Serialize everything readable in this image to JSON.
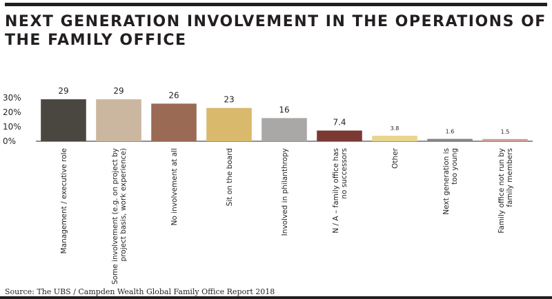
{
  "title": "NEXT GENERATION INVOLVEMENT IN THE OPERATIONS OF THE FAMILY OFFICE",
  "source": "Source: The UBS / Campden Wealth Global Family Office Report 2018",
  "chart_data": {
    "type": "bar",
    "title": "NEXT GENERATION INVOLVEMENT IN THE OPERATIONS OF THE FAMILY OFFICE",
    "xlabel": "",
    "ylabel": "",
    "ylim": [
      0,
      35
    ],
    "yticks": [
      0,
      10,
      20,
      30
    ],
    "ytick_labels": [
      "0%",
      "10%",
      "20%",
      "30%"
    ],
    "grid": false,
    "categories": [
      [
        "Management / executive role"
      ],
      [
        "Some involvement (e.g. on project by",
        "project basis, work experience)"
      ],
      [
        "No involvement at all"
      ],
      [
        "Sit on the board"
      ],
      [
        "Involved in philanthropy"
      ],
      [
        "N / A – family office has",
        "no successors"
      ],
      [
        "Other"
      ],
      [
        "Next generation is",
        "too young"
      ],
      [
        "Family office not run by",
        "family members"
      ]
    ],
    "values": [
      29,
      29,
      26,
      23,
      16,
      7.4,
      3.8,
      1.6,
      1.5
    ],
    "value_labels": [
      "29",
      "29",
      "26",
      "23",
      "16",
      "7.4",
      "3.8",
      "1.6",
      "1.5"
    ],
    "colors": [
      "#4a4741",
      "#cbb7a0",
      "#9a6a55",
      "#d9b96c",
      "#a9a8a6",
      "#7a3a33",
      "#e8d58e",
      "#858583",
      "#cc9e97"
    ]
  }
}
